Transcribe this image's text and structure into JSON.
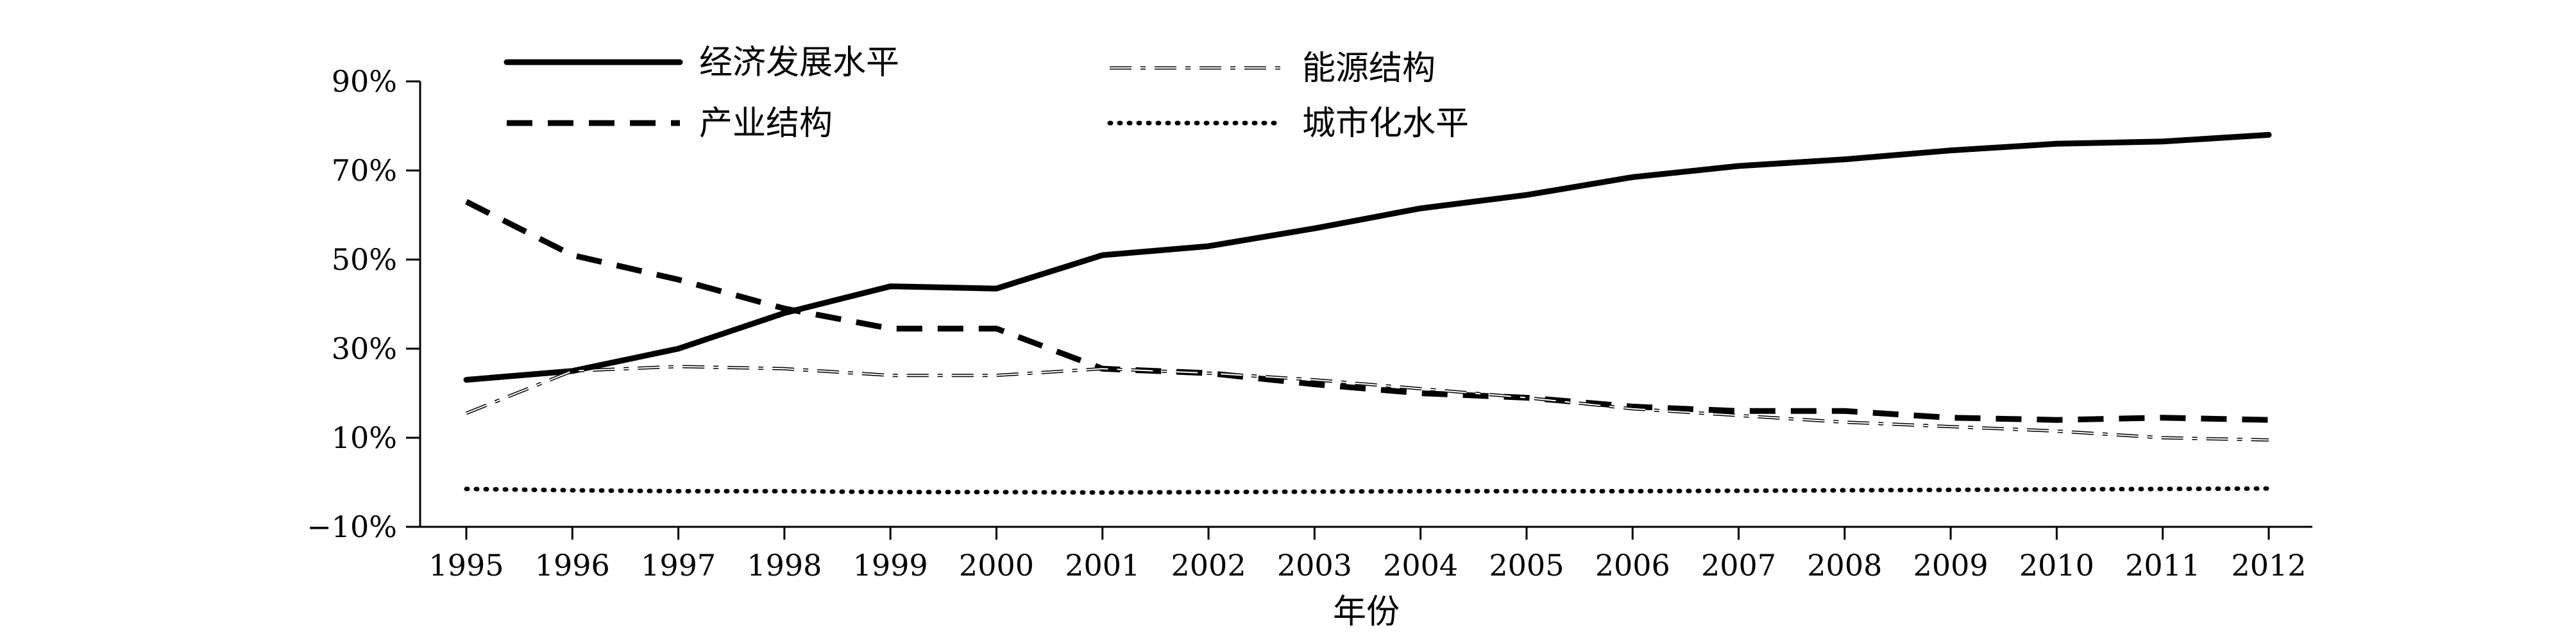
{
  "chart_data": {
    "type": "line",
    "title": "",
    "xlabel": "年份",
    "ylabel": "",
    "categories": [
      "1995",
      "1996",
      "1997",
      "1998",
      "1999",
      "2000",
      "2001",
      "2002",
      "2003",
      "2004",
      "2005",
      "2006",
      "2007",
      "2008",
      "2009",
      "2010",
      "2011",
      "2012"
    ],
    "ylim": [
      -10,
      90
    ],
    "y_ticks": [
      -10,
      10,
      30,
      50,
      70,
      90
    ],
    "y_tick_labels": [
      "−10%",
      "10%",
      "30%",
      "50%",
      "70%",
      "90%"
    ],
    "grid": false,
    "legend_placement": "top",
    "series": [
      {
        "name": "经济发展水平",
        "style": "solid",
        "values": [
          23,
          25,
          30,
          38,
          44,
          43.5,
          51,
          53,
          57,
          61.5,
          64.5,
          68.5,
          71,
          72.5,
          74.5,
          76,
          76.5,
          78
        ]
      },
      {
        "name": "产业结构",
        "style": "dashed",
        "values": [
          63,
          51,
          45.5,
          39,
          34.5,
          34.5,
          25.5,
          24.5,
          22,
          20,
          19,
          17,
          16,
          16,
          14.5,
          14,
          14.5,
          14
        ]
      },
      {
        "name": "能源结构",
        "style": "dashdot",
        "values": [
          15.5,
          25,
          26,
          25.5,
          24,
          24,
          25.5,
          24.5,
          23,
          21,
          19,
          16.5,
          15,
          13.5,
          12.5,
          11.5,
          10,
          9.5
        ]
      },
      {
        "name": "城市化水平",
        "style": "dotted",
        "values": [
          -1.5,
          -1.8,
          -2,
          -2,
          -2.2,
          -2.2,
          -2.3,
          -2.2,
          -2.1,
          -2,
          -2,
          -2,
          -1.9,
          -1.8,
          -1.7,
          -1.6,
          -1.5,
          -1.4
        ]
      }
    ]
  }
}
